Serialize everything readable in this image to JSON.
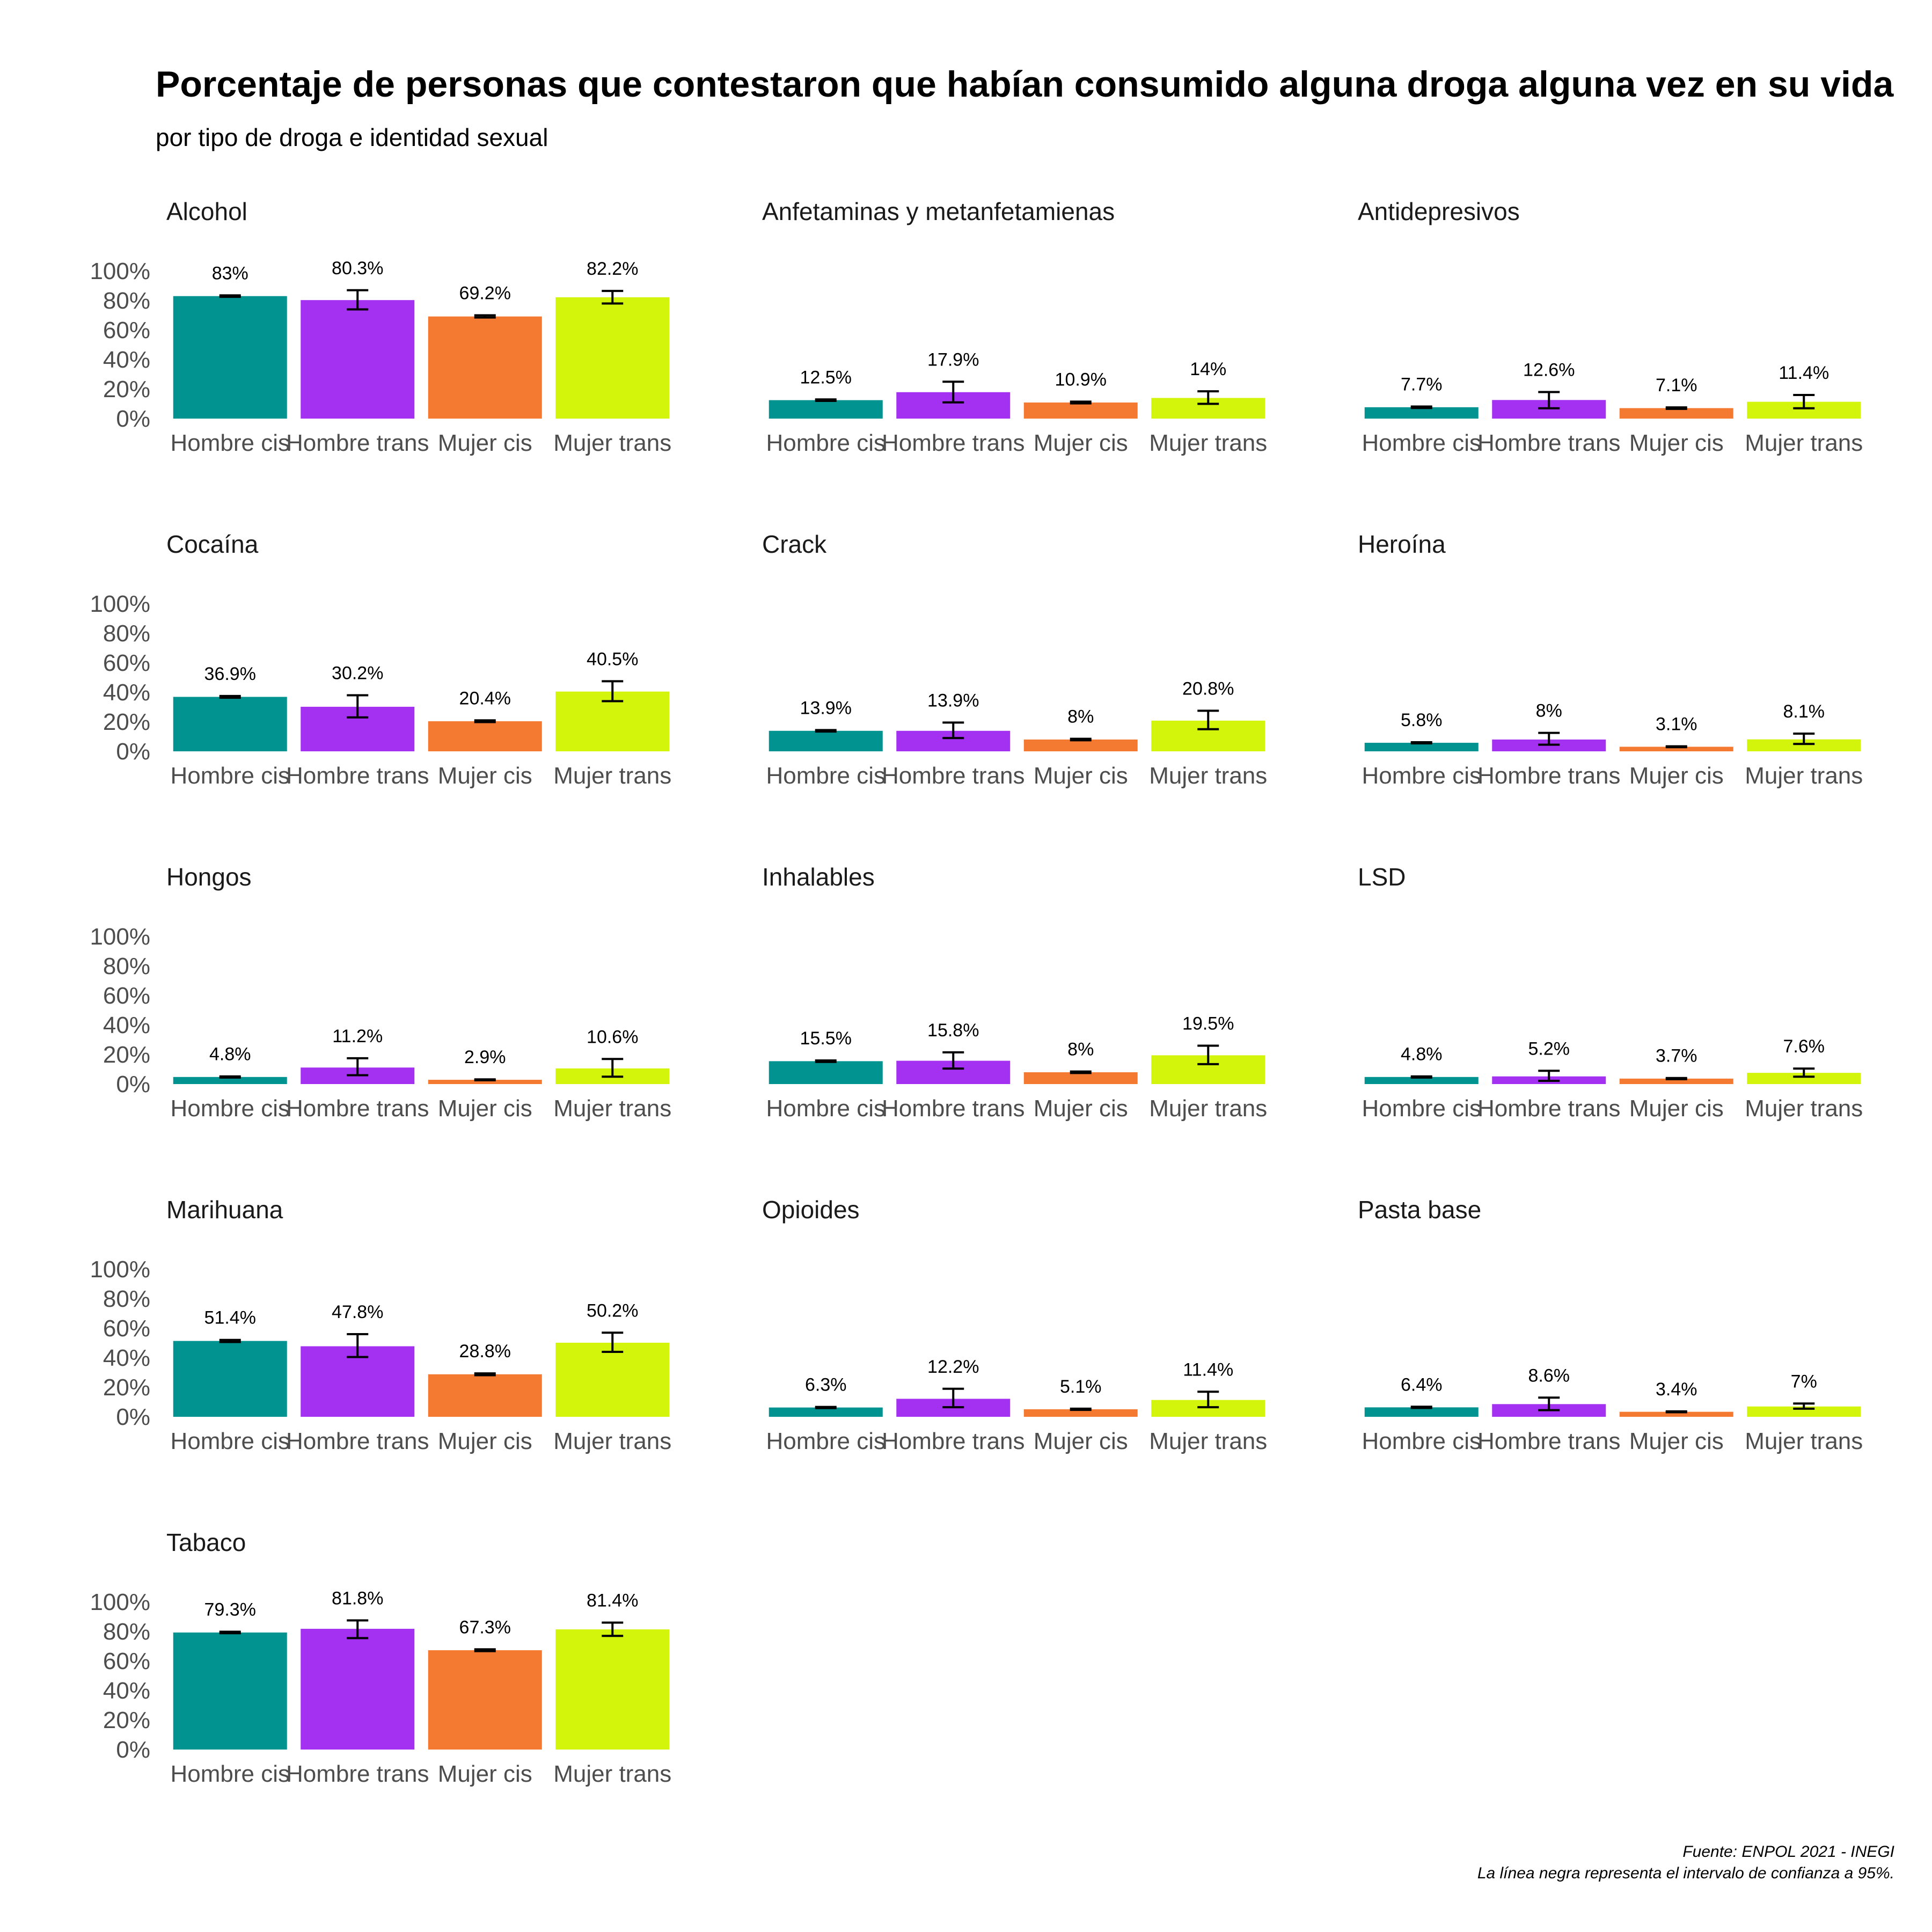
{
  "title": "Porcentaje de personas que contestaron que habían consumido alguna droga alguna vez en su vida",
  "subtitle": "por tipo de droga e identidad sexual",
  "caption": [
    "Fuente: ENPOL 2021 - INEGI",
    "La línea negra representa el intervalo de confianza a 95%."
  ],
  "colors": {
    "Hombre cis": "#009390",
    "Hombre trans": "#a431f2",
    "Mujer cis": "#f47a31",
    "Mujer trans": "#d3f50b"
  },
  "chart_data": {
    "type": "bar",
    "facet": "small-multiples",
    "categories": [
      "Hombre cis",
      "Hombre trans",
      "Mujer cis",
      "Mujer trans"
    ],
    "y_ticks": [
      "0%",
      "20%",
      "40%",
      "60%",
      "80%",
      "100%"
    ],
    "ylim": [
      0,
      100
    ],
    "grid": false,
    "legend": "none",
    "panels": [
      {
        "name": "Alcohol",
        "values": [
          83,
          80.3,
          69.2,
          82.2
        ],
        "labels": [
          "83%",
          "80.3%",
          "69.2%",
          "82.2%"
        ],
        "ci_low": [
          82.5,
          74,
          68.5,
          78
        ],
        "ci_high": [
          83.5,
          87,
          70,
          86.5
        ]
      },
      {
        "name": "Anfetaminas y metanfetamienas",
        "values": [
          12.5,
          17.9,
          10.9,
          14
        ],
        "labels": [
          "12.5%",
          "17.9%",
          "10.9%",
          "14%"
        ],
        "ci_low": [
          12,
          11,
          10.3,
          10
        ],
        "ci_high": [
          13,
          25,
          11.5,
          18.5
        ]
      },
      {
        "name": "Antidepresivos",
        "values": [
          7.7,
          12.6,
          7.1,
          11.4
        ],
        "labels": [
          "7.7%",
          "12.6%",
          "7.1%",
          "11.4%"
        ],
        "ci_low": [
          7.2,
          7,
          6.6,
          7
        ],
        "ci_high": [
          8.2,
          18,
          7.6,
          16
        ]
      },
      {
        "name": "Cocaína",
        "values": [
          36.9,
          30.2,
          20.4,
          40.5
        ],
        "labels": [
          "36.9%",
          "30.2%",
          "20.4%",
          "40.5%"
        ],
        "ci_low": [
          36.3,
          23,
          19.8,
          34
        ],
        "ci_high": [
          37.5,
          38,
          21,
          47.5
        ]
      },
      {
        "name": "Crack",
        "values": [
          13.9,
          13.9,
          8,
          20.8
        ],
        "labels": [
          "13.9%",
          "13.9%",
          "8%",
          "20.8%"
        ],
        "ci_low": [
          13.4,
          9,
          7.5,
          15
        ],
        "ci_high": [
          14.4,
          19.5,
          8.5,
          27.5
        ]
      },
      {
        "name": "Heroína",
        "values": [
          5.8,
          8,
          3.1,
          8.1
        ],
        "labels": [
          "5.8%",
          "8%",
          "3.1%",
          "8.1%"
        ],
        "ci_low": [
          5.4,
          4.5,
          2.8,
          5
        ],
        "ci_high": [
          6.2,
          12.5,
          3.4,
          12
        ]
      },
      {
        "name": "Hongos",
        "values": [
          4.8,
          11.2,
          2.9,
          10.6
        ],
        "labels": [
          "4.8%",
          "11.2%",
          "2.9%",
          "10.6%"
        ],
        "ci_low": [
          4.4,
          6,
          2.6,
          5
        ],
        "ci_high": [
          5.2,
          17.5,
          3.2,
          17
        ]
      },
      {
        "name": "Inhalables",
        "values": [
          15.5,
          15.8,
          8,
          19.5
        ],
        "labels": [
          "15.5%",
          "15.8%",
          "8%",
          "19.5%"
        ],
        "ci_low": [
          15,
          10.5,
          7.5,
          13.5
        ],
        "ci_high": [
          16,
          21.5,
          8.5,
          26
        ]
      },
      {
        "name": "LSD",
        "values": [
          4.8,
          5.2,
          3.7,
          7.6
        ],
        "labels": [
          "4.8%",
          "5.2%",
          "3.7%",
          "7.6%"
        ],
        "ci_low": [
          4.4,
          2.2,
          3.3,
          5
        ],
        "ci_high": [
          5.2,
          9,
          4.1,
          10.5
        ]
      },
      {
        "name": "Marihuana",
        "values": [
          51.4,
          47.8,
          28.8,
          50.2
        ],
        "labels": [
          "51.4%",
          "47.8%",
          "28.8%",
          "50.2%"
        ],
        "ci_low": [
          50.7,
          40.5,
          28.2,
          44
        ],
        "ci_high": [
          52.1,
          56,
          29.4,
          57
        ]
      },
      {
        "name": "Opioides",
        "values": [
          6.3,
          12.2,
          5.1,
          11.4
        ],
        "labels": [
          "6.3%",
          "12.2%",
          "5.1%",
          "11.4%"
        ],
        "ci_low": [
          5.9,
          6.5,
          4.7,
          6.5
        ],
        "ci_high": [
          6.7,
          19,
          5.5,
          17
        ]
      },
      {
        "name": "Pasta base",
        "values": [
          6.4,
          8.6,
          3.4,
          7
        ],
        "labels": [
          "6.4%",
          "8.6%",
          "3.4%",
          "7%"
        ],
        "ci_low": [
          6,
          4.5,
          3.1,
          5.5
        ],
        "ci_high": [
          6.8,
          13,
          3.7,
          9
        ]
      },
      {
        "name": "Tabaco",
        "values": [
          79.3,
          81.8,
          67.3,
          81.4
        ],
        "labels": [
          "79.3%",
          "81.8%",
          "67.3%",
          "81.4%"
        ],
        "ci_low": [
          78.8,
          75.5,
          66.7,
          77
        ],
        "ci_high": [
          79.8,
          87.5,
          67.9,
          86
        ]
      }
    ]
  }
}
